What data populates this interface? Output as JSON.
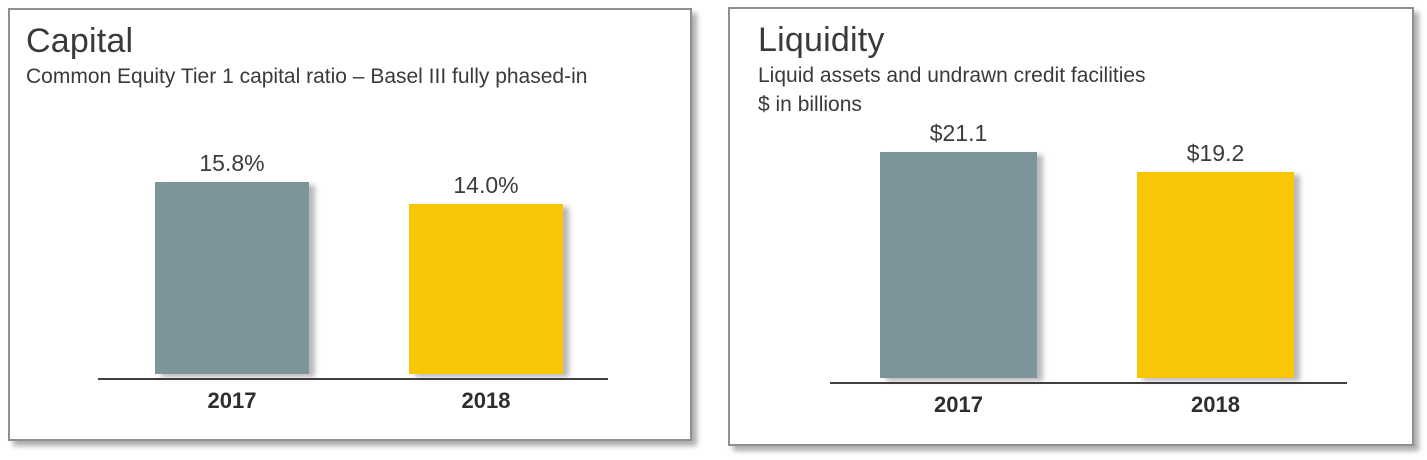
{
  "colors": {
    "bar_gray": "#7E949B",
    "bar_yellow": "#F9C606",
    "text": "#3A3A3A",
    "axis": "#3F3F3F",
    "panel_border": "#8F8F8F"
  },
  "chart_data": [
    {
      "type": "bar",
      "title": "Capital",
      "subtitle": "Common Equity Tier 1 capital ratio – Basel III fully phased-in",
      "categories": [
        "2017",
        "2018"
      ],
      "values": [
        15.8,
        14.0
      ],
      "value_labels": [
        "15.8%",
        "14.0%"
      ],
      "unit": "percent",
      "baseline": 0,
      "grid": false,
      "legend": false,
      "bar_colors": [
        "#7E949B",
        "#F9C606"
      ]
    },
    {
      "type": "bar",
      "title": "Liquidity",
      "subtitle": "Liquid assets and undrawn credit facilities",
      "subtitle2": "$ in billions",
      "categories": [
        "2017",
        "2018"
      ],
      "values": [
        21.1,
        19.2
      ],
      "value_labels": [
        "$21.1",
        "$19.2"
      ],
      "unit": "USD billions",
      "baseline": 0,
      "grid": false,
      "legend": false,
      "bar_colors": [
        "#7E949B",
        "#F9C606"
      ]
    }
  ]
}
